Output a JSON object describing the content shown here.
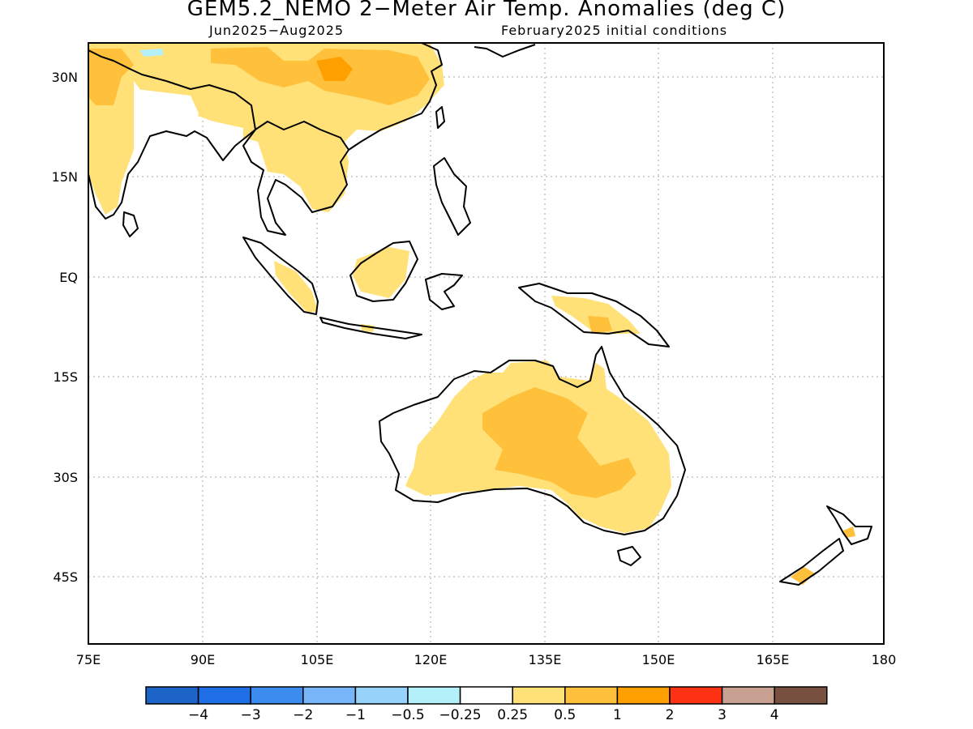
{
  "title": "GEM5.2_NEMO 2−Meter Air Temp. Anomalies (deg C)",
  "subtitle_left": "Jun2025−Aug2025",
  "subtitle_right": "February2025 initial conditions",
  "axes": {
    "lon_ticks": [
      "75E",
      "90E",
      "105E",
      "120E",
      "135E",
      "150E",
      "165E",
      "180"
    ],
    "lat_ticks": [
      "30N",
      "15N",
      "EQ",
      "15S",
      "30S",
      "45S"
    ]
  },
  "colorbar": {
    "colors": [
      "#1c64c8",
      "#1e6ee6",
      "#3c8cf0",
      "#78b4f8",
      "#96d2fa",
      "#b4f0fa",
      "#ffffff",
      "#ffe178",
      "#ffc03c",
      "#ffa000",
      "#ff3214",
      "#c8a092",
      "#785040"
    ],
    "labels": [
      "−4",
      "−3",
      "−2",
      "−1",
      "−0.5",
      "−0.25",
      "0.25",
      "0.5",
      "1",
      "2",
      "3",
      "4"
    ]
  }
}
